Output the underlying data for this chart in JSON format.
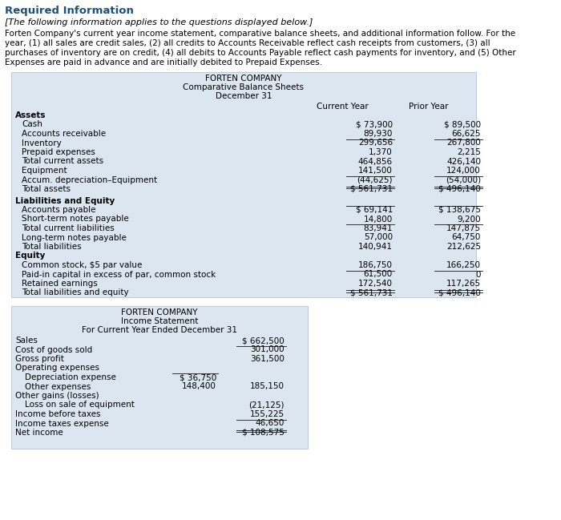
{
  "header_title": "Required Information",
  "italic_line": "[The following information applies to the questions displayed below.]",
  "body_lines": [
    "Forten Company's current year income statement, comparative balance sheets, and additional information follow. For the",
    "year, (1) all sales are credit sales, (2) all credits to Accounts Receivable reflect cash receipts from customers, (3) all",
    "purchases of inventory are on credit, (4) all debits to Accounts Payable reflect cash payments for inventory, and (5) Other",
    "Expenses are paid in advance and are initially debited to Prepaid Expenses."
  ],
  "table1": {
    "title_line1": "FORTEN COMPANY",
    "title_line2": "Comparative Balance Sheets",
    "title_line3": "December 31",
    "col_header_cur": "Current Year",
    "col_header_prior": "Prior Year",
    "rows": [
      {
        "label": "Assets",
        "cur": "",
        "prior": "",
        "bold": true,
        "indent": 0,
        "section_gap": false
      },
      {
        "label": "Cash",
        "cur": "$ 73,900",
        "prior": "$ 89,500",
        "bold": false,
        "indent": 1,
        "ul_above_cur": false,
        "ul_above_prior": false,
        "dbl_ul": false
      },
      {
        "label": "Accounts receivable",
        "cur": "89,930",
        "prior": "66,625",
        "bold": false,
        "indent": 1,
        "ul_above_cur": false,
        "ul_above_prior": false,
        "dbl_ul": false
      },
      {
        "label": "Inventory",
        "cur": "299,656",
        "prior": "267,800",
        "bold": false,
        "indent": 1,
        "ul_above_cur": false,
        "ul_above_prior": false,
        "dbl_ul": false
      },
      {
        "label": "Prepaid expenses",
        "cur": "1,370",
        "prior": "2,215",
        "bold": false,
        "indent": 1,
        "ul_above_cur": true,
        "ul_above_prior": true,
        "dbl_ul": false
      },
      {
        "label": "Total current assets",
        "cur": "464,856",
        "prior": "426,140",
        "bold": false,
        "indent": 1,
        "ul_above_cur": false,
        "ul_above_prior": false,
        "dbl_ul": false
      },
      {
        "label": "Equipment",
        "cur": "141,500",
        "prior": "124,000",
        "bold": false,
        "indent": 1,
        "ul_above_cur": false,
        "ul_above_prior": false,
        "dbl_ul": false
      },
      {
        "label": "Accum. depreciation–Equipment",
        "cur": "(44,625)",
        "prior": "(54,000)",
        "bold": false,
        "indent": 1,
        "ul_above_cur": false,
        "ul_above_prior": false,
        "dbl_ul": false
      },
      {
        "label": "Total assets",
        "cur": "$ 561,731",
        "prior": "$ 496,140",
        "bold": false,
        "indent": 1,
        "ul_above_cur": true,
        "ul_above_prior": true,
        "dbl_ul": true
      },
      {
        "label": "Liabilities and Equity",
        "cur": "",
        "prior": "",
        "bold": true,
        "indent": 0,
        "section_gap": true
      },
      {
        "label": "Accounts payable",
        "cur": "$ 69,141",
        "prior": "$ 138,675",
        "bold": false,
        "indent": 1,
        "ul_above_cur": false,
        "ul_above_prior": false,
        "dbl_ul": false
      },
      {
        "label": "Short-term notes payable",
        "cur": "14,800",
        "prior": "9,200",
        "bold": false,
        "indent": 1,
        "ul_above_cur": true,
        "ul_above_prior": true,
        "dbl_ul": false
      },
      {
        "label": "Total current liabilities",
        "cur": "83,941",
        "prior": "147,875",
        "bold": false,
        "indent": 1,
        "ul_above_cur": false,
        "ul_above_prior": false,
        "dbl_ul": false
      },
      {
        "label": "Long-term notes payable",
        "cur": "57,000",
        "prior": "64,750",
        "bold": false,
        "indent": 1,
        "ul_above_cur": true,
        "ul_above_prior": true,
        "dbl_ul": false
      },
      {
        "label": "Total liabilities",
        "cur": "140,941",
        "prior": "212,625",
        "bold": false,
        "indent": 1,
        "ul_above_cur": false,
        "ul_above_prior": false,
        "dbl_ul": false
      },
      {
        "label": "Equity",
        "cur": "",
        "prior": "",
        "bold": true,
        "indent": 0,
        "section_gap": false
      },
      {
        "label": "Common stock, $5 par value",
        "cur": "186,750",
        "prior": "166,250",
        "bold": false,
        "indent": 1,
        "ul_above_cur": false,
        "ul_above_prior": false,
        "dbl_ul": false
      },
      {
        "label": "Paid-in capital in excess of par, common stock",
        "cur": "61,500",
        "prior": "0",
        "bold": false,
        "indent": 1,
        "ul_above_cur": false,
        "ul_above_prior": false,
        "dbl_ul": false
      },
      {
        "label": "Retained earnings",
        "cur": "172,540",
        "prior": "117,265",
        "bold": false,
        "indent": 1,
        "ul_above_cur": true,
        "ul_above_prior": true,
        "dbl_ul": false
      },
      {
        "label": "Total liabilities and equity",
        "cur": "$ 561,731",
        "prior": "$ 496,140",
        "bold": false,
        "indent": 1,
        "ul_above_cur": false,
        "ul_above_prior": false,
        "dbl_ul": true
      }
    ]
  },
  "table2": {
    "title_line1": "FORTEN COMPANY",
    "title_line2": "Income Statement",
    "title_line3": "For Current Year Ended December 31",
    "rows": [
      {
        "label": "Sales",
        "c1": "",
        "c2": "$ 662,500",
        "indent": 0,
        "ul_above_c1": false,
        "ul_above_c2": false,
        "ul_c1": false,
        "dbl_ul": false
      },
      {
        "label": "Cost of goods sold",
        "c1": "",
        "c2": "301,000",
        "indent": 0,
        "ul_above_c1": false,
        "ul_above_c2": false,
        "ul_c1": false,
        "dbl_ul": false
      },
      {
        "label": "Gross profit",
        "c1": "",
        "c2": "361,500",
        "indent": 0,
        "ul_above_c1": false,
        "ul_above_c2": true,
        "ul_c1": false,
        "dbl_ul": false
      },
      {
        "label": "Operating expenses",
        "c1": "",
        "c2": "",
        "indent": 0,
        "ul_above_c1": false,
        "ul_above_c2": false,
        "ul_c1": false,
        "dbl_ul": false
      },
      {
        "label": "Depreciation expense",
        "c1": "$ 36,750",
        "c2": "",
        "indent": 1,
        "ul_above_c1": false,
        "ul_above_c2": false,
        "ul_c1": false,
        "dbl_ul": false
      },
      {
        "label": "Other expenses",
        "c1": "148,400",
        "c2": "185,150",
        "indent": 1,
        "ul_above_c1": false,
        "ul_above_c2": false,
        "ul_c1": true,
        "dbl_ul": false
      },
      {
        "label": "Other gains (losses)",
        "c1": "",
        "c2": "",
        "indent": 0,
        "ul_above_c1": false,
        "ul_above_c2": false,
        "ul_c1": false,
        "dbl_ul": false
      },
      {
        "label": "Loss on sale of equipment",
        "c1": "",
        "c2": "(21,125)",
        "indent": 1,
        "ul_above_c1": false,
        "ul_above_c2": false,
        "ul_c1": false,
        "dbl_ul": false
      },
      {
        "label": "Income before taxes",
        "c1": "",
        "c2": "155,225",
        "indent": 0,
        "ul_above_c1": false,
        "ul_above_c2": false,
        "ul_c1": false,
        "dbl_ul": false
      },
      {
        "label": "Income taxes expense",
        "c1": "",
        "c2": "46,650",
        "indent": 0,
        "ul_above_c1": false,
        "ul_above_c2": false,
        "ul_c1": false,
        "dbl_ul": false
      },
      {
        "label": "Net income",
        "c1": "",
        "c2": "$ 108,575",
        "indent": 0,
        "ul_above_c1": false,
        "ul_above_c2": true,
        "ul_c1": false,
        "dbl_ul": true
      }
    ]
  },
  "table_bg": "#dce6f1",
  "header_blue": "#1f4e79",
  "font_size_header": 9.5,
  "font_size_body": 8.0,
  "font_size_table": 7.5
}
